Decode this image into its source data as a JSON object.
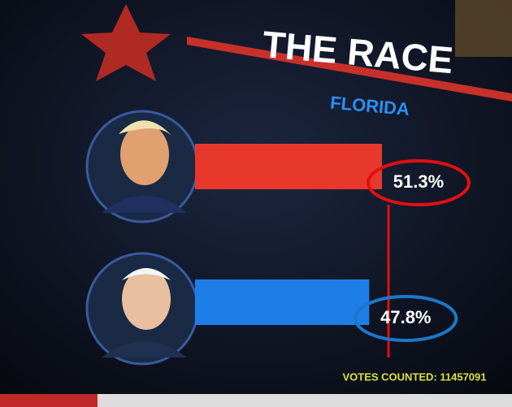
{
  "chart_data": {
    "type": "bar",
    "orientation": "horizontal",
    "title": "THE RACE",
    "subtitle": "FLORIDA",
    "categories": [
      null,
      null
    ],
    "values": [
      51.3,
      47.8
    ],
    "value_labels": [
      "51.3%",
      "47.8%"
    ],
    "colors": [
      "#e8382c",
      "#1e7ee8"
    ],
    "annotation": "VOTES COUNTED: 11457091"
  }
}
